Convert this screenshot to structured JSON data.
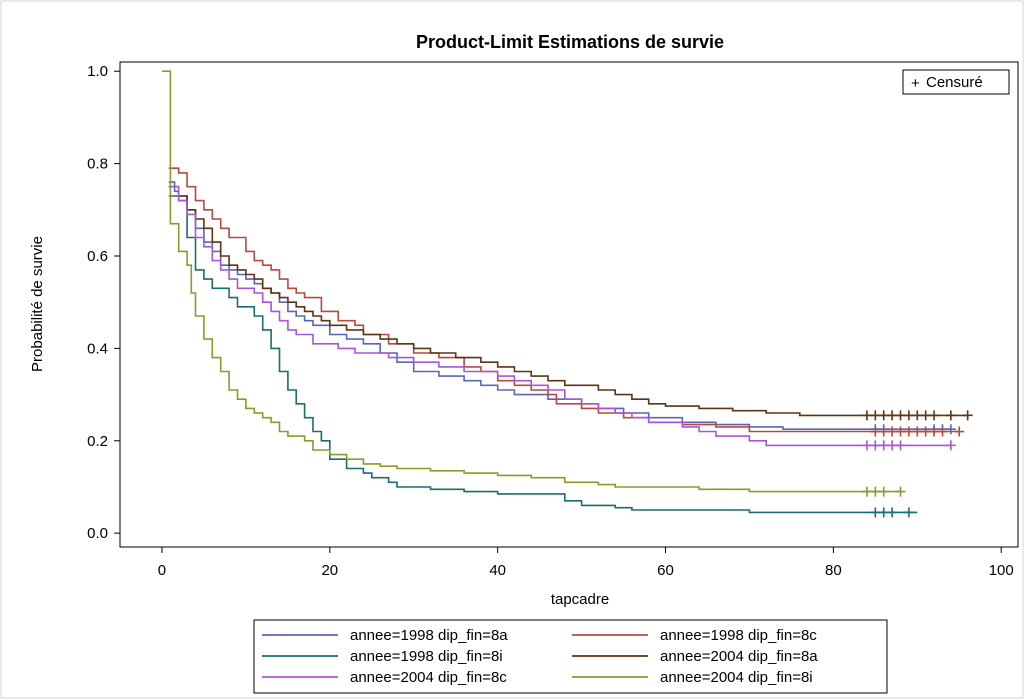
{
  "chart_data": {
    "type": "line",
    "subtype": "step",
    "title": "Product-Limit Estimations de survie",
    "xlabel": "tapcadre",
    "ylabel": "Probabilité de survie",
    "xlim": [
      -5,
      102
    ],
    "ylim": [
      -0.03,
      1.02
    ],
    "xticks": [
      0,
      20,
      40,
      60,
      80,
      100
    ],
    "yticks": [
      0.0,
      0.2,
      0.4,
      0.6,
      0.8,
      1.0
    ],
    "xtick_labels": [
      "0",
      "20",
      "40",
      "60",
      "80",
      "100"
    ],
    "ytick_labels": [
      "0.0",
      "0.2",
      "0.4",
      "0.6",
      "0.8",
      "1.0"
    ],
    "grid": false,
    "censor_legend": {
      "symbol": "+",
      "label": "Censuré",
      "placement": "top-right"
    },
    "legend_placement": "bottom",
    "series": [
      {
        "name": "annee=1998 dip_fin=8a",
        "color": "#5b65b5",
        "points": [
          [
            0.8,
            0.76
          ],
          [
            1.5,
            0.74
          ],
          [
            2,
            0.72
          ],
          [
            3,
            0.7
          ],
          [
            4,
            0.66
          ],
          [
            5,
            0.63
          ],
          [
            6,
            0.61
          ],
          [
            7,
            0.58
          ],
          [
            8,
            0.57
          ],
          [
            9,
            0.56
          ],
          [
            10,
            0.55
          ],
          [
            11,
            0.54
          ],
          [
            12,
            0.53
          ],
          [
            13,
            0.52
          ],
          [
            14,
            0.5
          ],
          [
            15,
            0.48
          ],
          [
            16,
            0.47
          ],
          [
            17,
            0.46
          ],
          [
            18,
            0.45
          ],
          [
            20,
            0.43
          ],
          [
            22,
            0.42
          ],
          [
            24,
            0.41
          ],
          [
            26,
            0.39
          ],
          [
            28,
            0.37
          ],
          [
            30,
            0.35
          ],
          [
            33,
            0.34
          ],
          [
            36,
            0.33
          ],
          [
            38,
            0.32
          ],
          [
            40,
            0.31
          ],
          [
            42,
            0.3
          ],
          [
            44,
            0.3
          ],
          [
            46,
            0.29
          ],
          [
            48,
            0.29
          ],
          [
            50,
            0.28
          ],
          [
            52,
            0.27
          ],
          [
            55,
            0.26
          ],
          [
            58,
            0.25
          ],
          [
            62,
            0.24
          ],
          [
            66,
            0.235
          ],
          [
            70,
            0.23
          ],
          [
            74,
            0.225
          ],
          [
            94,
            0.225
          ]
        ],
        "censored_x": [
          85,
          86,
          92,
          93,
          94
        ]
      },
      {
        "name": "annee=1998 dip_fin=8c",
        "color": "#b74a3f",
        "points": [
          [
            0.8,
            0.79
          ],
          [
            2,
            0.78
          ],
          [
            3,
            0.75
          ],
          [
            4,
            0.72
          ],
          [
            5,
            0.7
          ],
          [
            6,
            0.68
          ],
          [
            7,
            0.66
          ],
          [
            8,
            0.64
          ],
          [
            10,
            0.61
          ],
          [
            11,
            0.59
          ],
          [
            12,
            0.58
          ],
          [
            13,
            0.57
          ],
          [
            14,
            0.55
          ],
          [
            15,
            0.53
          ],
          [
            16,
            0.52
          ],
          [
            17,
            0.51
          ],
          [
            19,
            0.48
          ],
          [
            21,
            0.46
          ],
          [
            23,
            0.45
          ],
          [
            24,
            0.43
          ],
          [
            27,
            0.41
          ],
          [
            30,
            0.39
          ],
          [
            33,
            0.38
          ],
          [
            36,
            0.36
          ],
          [
            38,
            0.35
          ],
          [
            40,
            0.33
          ],
          [
            42,
            0.32
          ],
          [
            44,
            0.31
          ],
          [
            46,
            0.3
          ],
          [
            47,
            0.28
          ],
          [
            50,
            0.27
          ],
          [
            52,
            0.26
          ],
          [
            55,
            0.25
          ],
          [
            58,
            0.24
          ],
          [
            62,
            0.235
          ],
          [
            66,
            0.23
          ],
          [
            70,
            0.22
          ],
          [
            95,
            0.22
          ]
        ],
        "censored_x": [
          85,
          86,
          87,
          88,
          89,
          90,
          91,
          92,
          93,
          95
        ]
      },
      {
        "name": "annee=1998 dip_fin=8i",
        "color": "#1a6e6e",
        "points": [
          [
            0.8,
            0.73
          ],
          [
            3,
            0.64
          ],
          [
            4,
            0.57
          ],
          [
            5,
            0.55
          ],
          [
            6,
            0.53
          ],
          [
            8,
            0.51
          ],
          [
            9,
            0.49
          ],
          [
            11,
            0.47
          ],
          [
            12,
            0.44
          ],
          [
            13,
            0.4
          ],
          [
            14,
            0.35
          ],
          [
            15,
            0.31
          ],
          [
            16,
            0.28
          ],
          [
            17,
            0.25
          ],
          [
            18,
            0.22
          ],
          [
            19,
            0.2
          ],
          [
            20,
            0.16
          ],
          [
            22,
            0.14
          ],
          [
            24,
            0.13
          ],
          [
            25,
            0.12
          ],
          [
            27,
            0.11
          ],
          [
            28,
            0.1
          ],
          [
            32,
            0.095
          ],
          [
            36,
            0.09
          ],
          [
            40,
            0.085
          ],
          [
            46,
            0.085
          ],
          [
            48,
            0.07
          ],
          [
            50,
            0.06
          ],
          [
            54,
            0.055
          ],
          [
            56,
            0.05
          ],
          [
            60,
            0.05
          ],
          [
            68,
            0.05
          ],
          [
            70,
            0.045
          ],
          [
            90,
            0.045
          ]
        ],
        "censored_x": [
          85,
          86,
          87,
          89
        ]
      },
      {
        "name": "annee=2004 dip_fin=8a",
        "color": "#5e3412",
        "points": [
          [
            0.8,
            0.75
          ],
          [
            2,
            0.73
          ],
          [
            3,
            0.7
          ],
          [
            4,
            0.68
          ],
          [
            5,
            0.66
          ],
          [
            6,
            0.63
          ],
          [
            7,
            0.6
          ],
          [
            8,
            0.58
          ],
          [
            9,
            0.57
          ],
          [
            10,
            0.56
          ],
          [
            11,
            0.55
          ],
          [
            12,
            0.53
          ],
          [
            13,
            0.52
          ],
          [
            14,
            0.51
          ],
          [
            15,
            0.5
          ],
          [
            16,
            0.49
          ],
          [
            17,
            0.48
          ],
          [
            18,
            0.47
          ],
          [
            19,
            0.46
          ],
          [
            20,
            0.45
          ],
          [
            22,
            0.44
          ],
          [
            24,
            0.43
          ],
          [
            26,
            0.42
          ],
          [
            28,
            0.41
          ],
          [
            30,
            0.4
          ],
          [
            32,
            0.39
          ],
          [
            35,
            0.38
          ],
          [
            38,
            0.37
          ],
          [
            40,
            0.36
          ],
          [
            42,
            0.35
          ],
          [
            44,
            0.34
          ],
          [
            46,
            0.33
          ],
          [
            48,
            0.32
          ],
          [
            52,
            0.31
          ],
          [
            54,
            0.3
          ],
          [
            56,
            0.29
          ],
          [
            58,
            0.28
          ],
          [
            60,
            0.275
          ],
          [
            64,
            0.27
          ],
          [
            68,
            0.265
          ],
          [
            72,
            0.26
          ],
          [
            76,
            0.255
          ],
          [
            96,
            0.255
          ]
        ],
        "censored_x": [
          84,
          85,
          86,
          87,
          88,
          89,
          90,
          91,
          92,
          94,
          96
        ]
      },
      {
        "name": "annee=2004 dip_fin=8c",
        "color": "#a855d8",
        "points": [
          [
            0.8,
            0.75
          ],
          [
            2,
            0.72
          ],
          [
            3,
            0.69
          ],
          [
            4,
            0.64
          ],
          [
            5,
            0.62
          ],
          [
            6,
            0.59
          ],
          [
            7,
            0.57
          ],
          [
            8,
            0.55
          ],
          [
            9,
            0.53
          ],
          [
            11,
            0.52
          ],
          [
            12,
            0.5
          ],
          [
            13,
            0.48
          ],
          [
            14,
            0.46
          ],
          [
            15,
            0.44
          ],
          [
            16,
            0.43
          ],
          [
            18,
            0.41
          ],
          [
            21,
            0.4
          ],
          [
            23,
            0.39
          ],
          [
            27,
            0.38
          ],
          [
            30,
            0.37
          ],
          [
            33,
            0.36
          ],
          [
            36,
            0.35
          ],
          [
            40,
            0.34
          ],
          [
            42,
            0.33
          ],
          [
            44,
            0.32
          ],
          [
            46,
            0.31
          ],
          [
            48,
            0.29
          ],
          [
            50,
            0.28
          ],
          [
            52,
            0.27
          ],
          [
            54,
            0.26
          ],
          [
            56,
            0.25
          ],
          [
            58,
            0.24
          ],
          [
            62,
            0.23
          ],
          [
            64,
            0.22
          ],
          [
            66,
            0.21
          ],
          [
            70,
            0.2
          ],
          [
            72,
            0.19
          ],
          [
            94,
            0.19
          ]
        ],
        "censored_x": [
          84,
          85,
          86,
          87,
          88,
          94
        ]
      },
      {
        "name": "annee=2004 dip_fin=8i",
        "color": "#8c9a2c",
        "points": [
          [
            0,
            1.0
          ],
          [
            0.8,
            1.0
          ],
          [
            1,
            0.67
          ],
          [
            2,
            0.61
          ],
          [
            3,
            0.58
          ],
          [
            3.5,
            0.52
          ],
          [
            4,
            0.47
          ],
          [
            5,
            0.42
          ],
          [
            6,
            0.38
          ],
          [
            7,
            0.35
          ],
          [
            8,
            0.31
          ],
          [
            9,
            0.29
          ],
          [
            10,
            0.27
          ],
          [
            11,
            0.26
          ],
          [
            12,
            0.25
          ],
          [
            13,
            0.24
          ],
          [
            14,
            0.22
          ],
          [
            15,
            0.21
          ],
          [
            17,
            0.2
          ],
          [
            18,
            0.18
          ],
          [
            20,
            0.17
          ],
          [
            22,
            0.16
          ],
          [
            24,
            0.15
          ],
          [
            26,
            0.145
          ],
          [
            28,
            0.14
          ],
          [
            32,
            0.135
          ],
          [
            36,
            0.13
          ],
          [
            40,
            0.125
          ],
          [
            44,
            0.12
          ],
          [
            48,
            0.11
          ],
          [
            52,
            0.105
          ],
          [
            54,
            0.1
          ],
          [
            58,
            0.1
          ],
          [
            64,
            0.095
          ],
          [
            68,
            0.095
          ],
          [
            70,
            0.09
          ],
          [
            88,
            0.09
          ]
        ],
        "censored_x": [
          84,
          85,
          86,
          88
        ]
      }
    ]
  }
}
